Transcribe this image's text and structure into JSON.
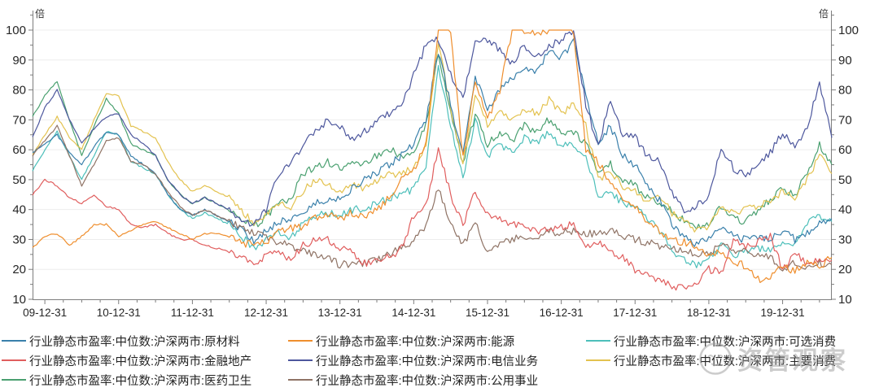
{
  "chart_data": {
    "type": "line",
    "title": "",
    "unit_label": "倍",
    "grid": true,
    "legend_position": "bottom",
    "y_axis": {
      "min": 10,
      "max": 100,
      "tick_interval": 10,
      "ticks": [
        10,
        20,
        30,
        40,
        50,
        60,
        70,
        80,
        90,
        100
      ]
    },
    "x_ticks": [
      "09-12-31",
      "10-12-31",
      "11-12-31",
      "12-12-31",
      "13-12-31",
      "14-12-31",
      "15-12-31",
      "16-12-31",
      "17-12-31",
      "18-12-31",
      "19-12-31"
    ],
    "x_start": "2009-11",
    "x_end": "2020-09",
    "months_total": 130,
    "sample_interval_months": 2,
    "series": [
      {
        "name": "行业静态市盈率:中位数:沪深两市:原材料",
        "short": "原材料",
        "color": "#3a80ab",
        "values": [
          59,
          62,
          65,
          59,
          55,
          61,
          66,
          65,
          58,
          55,
          52,
          45,
          40,
          38,
          40,
          38,
          36,
          33,
          29,
          33,
          36,
          37,
          39,
          42,
          43,
          44,
          47,
          50,
          52,
          55,
          58,
          62,
          70,
          93,
          75,
          58,
          85,
          73,
          80,
          84,
          88,
          86,
          93,
          91,
          96,
          78,
          62,
          68,
          58,
          55,
          48,
          43,
          35,
          31,
          28.5,
          30,
          34,
          31,
          30,
          31,
          30,
          33,
          30,
          32,
          36,
          37
        ]
      },
      {
        "name": "行业静态市盈率:中位数:沪深两市:能源",
        "short": "能源",
        "color": "#ef8e2d",
        "values": [
          27,
          31,
          32,
          28,
          31,
          35,
          35,
          31,
          33,
          35,
          36,
          34,
          32,
          30,
          32,
          32,
          31,
          29,
          28,
          29,
          33,
          34,
          34,
          37,
          38,
          37,
          39,
          38,
          40,
          44,
          50,
          53,
          62,
          100,
          100,
          57,
          83,
          70,
          80,
          100,
          100,
          99,
          100,
          100,
          100,
          60,
          56,
          49,
          44,
          41,
          36,
          33,
          30,
          29,
          28,
          25,
          26,
          23,
          21,
          16.5,
          17,
          21,
          19.5,
          22,
          21,
          24
        ]
      },
      {
        "name": "行业静态市盈率:中位数:沪深两市:可选消费",
        "short": "可选消费",
        "color": "#4dbfba",
        "values": [
          53,
          60,
          66,
          58,
          50,
          58,
          66,
          65,
          56,
          54,
          52,
          45,
          40,
          37,
          39,
          37,
          35,
          31,
          27,
          30,
          32,
          31,
          35,
          38,
          39,
          38,
          40,
          40,
          42,
          44,
          45,
          47,
          54,
          88,
          68,
          50,
          70,
          58,
          62,
          59,
          64,
          62,
          66,
          61,
          62,
          58,
          44,
          46,
          42,
          41,
          37,
          33,
          26,
          23,
          21.5,
          23,
          28,
          25,
          26,
          27,
          27,
          29,
          28,
          36,
          38,
          36
        ]
      },
      {
        "name": "行业静态市盈率:中位数:沪深两市:金融地产",
        "short": "金融地产",
        "color": "#e05e5e",
        "values": [
          45,
          50,
          48,
          44,
          42,
          45,
          41,
          40,
          35,
          34,
          35,
          32,
          30,
          30,
          28,
          27,
          26,
          24,
          21.5,
          25,
          26,
          23.5,
          28,
          30,
          30,
          27,
          26,
          22,
          23,
          24,
          27,
          38,
          42,
          60,
          45,
          35,
          46,
          38,
          37,
          35,
          34,
          33,
          33,
          34,
          35,
          28,
          29,
          26,
          24,
          20,
          18,
          16,
          14.5,
          14,
          14.5,
          20,
          19,
          29.5,
          28,
          29,
          31,
          20,
          25,
          22,
          24,
          23
        ]
      },
      {
        "name": "行业静态市盈率:中位数:沪深两市:电信业务",
        "short": "电信业务",
        "color": "#4d579d",
        "values": [
          64,
          74,
          80,
          70,
          62,
          67,
          71,
          72,
          65,
          62,
          58,
          50,
          45,
          42,
          44,
          42,
          40,
          37,
          35,
          40,
          52,
          55,
          62,
          66,
          70,
          68,
          63,
          66,
          70,
          72,
          75,
          85,
          95,
          97,
          85,
          77,
          96,
          97,
          93,
          89,
          95,
          91,
          94,
          97,
          99,
          75,
          61,
          77,
          65,
          64,
          58,
          56,
          46,
          39,
          41,
          45,
          60,
          54,
          51,
          56,
          59,
          66,
          61,
          68,
          82,
          64
        ]
      },
      {
        "name": "行业静态市盈率:中位数:沪深两市:主要消费",
        "short": "主要消费",
        "color": "#e3c24f",
        "values": [
          58,
          65,
          71,
          64,
          60,
          70,
          79,
          78,
          68,
          66,
          64,
          56,
          50,
          46,
          48,
          46,
          44,
          40,
          35,
          39,
          42,
          41,
          46,
          50,
          48,
          46,
          48,
          47,
          50,
          52,
          52,
          54,
          62,
          96,
          74,
          55,
          78,
          68,
          72,
          70,
          74,
          72,
          77,
          72,
          75,
          68,
          50,
          53,
          48,
          47,
          42,
          44,
          39,
          36,
          33,
          34,
          41,
          39,
          40,
          41,
          43,
          46,
          44,
          50,
          58,
          52
        ]
      },
      {
        "name": "行业静态市盈率:中位数:沪深两市:医药卫生",
        "short": "医药卫生",
        "color": "#4aa070",
        "values": [
          71,
          78,
          83,
          70,
          58,
          68,
          77,
          72,
          62,
          60,
          58,
          50,
          45,
          42,
          44,
          42,
          40,
          37,
          34,
          38,
          42,
          44,
          52,
          54,
          56,
          54,
          56,
          55,
          58,
          60,
          58,
          60,
          68,
          92,
          72,
          55,
          72,
          62,
          66,
          63,
          68,
          66,
          70,
          65,
          66,
          62,
          52,
          55,
          50,
          48,
          44,
          42,
          40,
          36,
          34,
          35,
          41,
          37,
          36,
          40,
          43,
          47,
          45,
          52,
          62,
          55
        ]
      },
      {
        "name": "行业静态市盈率:中位数:沪深两市:公用事业",
        "short": "公用事业",
        "color": "#8f7365",
        "values": [
          58,
          63,
          68,
          58,
          48,
          55,
          63,
          64,
          56,
          55,
          52,
          46,
          41,
          38,
          40,
          38,
          36,
          34,
          32,
          31,
          29,
          28,
          26,
          25,
          24,
          21.5,
          22,
          22,
          23,
          25,
          27,
          30,
          34,
          47,
          36,
          28,
          36,
          25,
          28,
          30,
          31,
          31,
          33,
          32,
          33,
          32,
          32,
          33,
          31,
          30,
          29,
          28,
          27,
          26,
          25,
          25,
          29,
          26,
          26,
          25,
          24,
          20.5,
          22,
          21,
          22,
          21.5
        ]
      }
    ]
  },
  "watermark": {
    "text": "资管观察",
    "logo": "panda-face-icon"
  }
}
